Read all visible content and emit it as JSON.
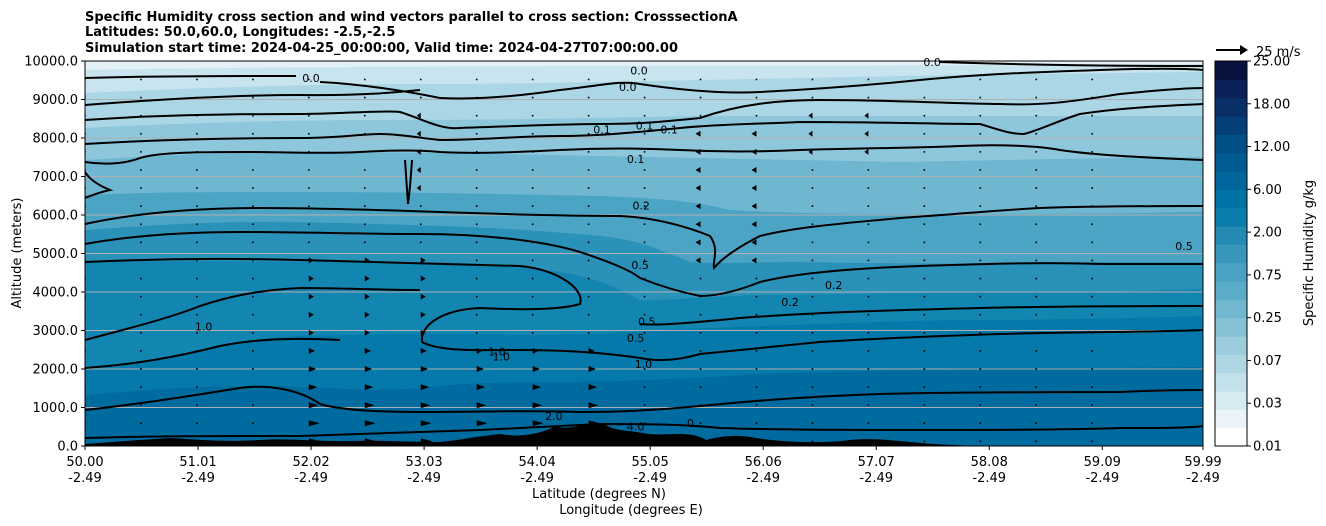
{
  "chart_data": {
    "type": "contourf",
    "title_lines": [
      "Specific Humidity cross section and wind vectors parallel to cross section: CrosssectionA",
      "Latitudes: 50.0,60.0, Longitudes: -2.5,-2.5",
      "Simulation start time: 2024-04-25_00:00:00, Valid time: 2024-04-27T07:00:00.00"
    ],
    "ylabel": "Altitude (meters)",
    "xlabel_lines": [
      "Latitude (degrees N)",
      "Longitude (degrees E)"
    ],
    "ylim": [
      0,
      10000
    ],
    "y_ticks": [
      "0.0",
      "1000.0",
      "2000.0",
      "3000.0",
      "4000.0",
      "5000.0",
      "6000.0",
      "7000.0",
      "8000.0",
      "9000.0",
      "10000.0"
    ],
    "y_tick_values": [
      0,
      1000,
      2000,
      3000,
      4000,
      5000,
      6000,
      7000,
      8000,
      9000,
      10000
    ],
    "x_ticks_lat": [
      "50.00",
      "51.01",
      "52.02",
      "53.03",
      "54.04",
      "55.05",
      "56.06",
      "57.07",
      "58.08",
      "59.09",
      "59.99"
    ],
    "x_ticks_lon": [
      "-2.49",
      "-2.49",
      "-2.49",
      "-2.49",
      "-2.49",
      "-2.49",
      "-2.49",
      "-2.49",
      "-2.49",
      "-2.49",
      "-2.49"
    ],
    "x_tick_values": [
      50.0,
      51.01,
      52.02,
      53.03,
      54.04,
      55.05,
      56.06,
      57.07,
      58.08,
      59.09,
      59.99
    ],
    "xlim": [
      50.0,
      59.99
    ],
    "horizontal_grid": true,
    "colorbar": {
      "label": "Specific Humidity g/kg",
      "tick_labels": [
        "0.01",
        "0.03",
        "0.07",
        "0.25",
        "0.75",
        "2.00",
        "6.00",
        "12.00",
        "18.00",
        "25.00"
      ],
      "colors": [
        "#ffffff",
        "#eaf4f8",
        "#d6ebf1",
        "#c2e1ea",
        "#afd7e3",
        "#9bcddd",
        "#86c2d6",
        "#71b7cf",
        "#5aacc8",
        "#4aa1c2",
        "#3996bb",
        "#258ab3",
        "#0b7eab",
        "#0072a4",
        "#00669c",
        "#005b91",
        "#004f85",
        "#043f77",
        "#082f67",
        "#0b2158",
        "#08123f"
      ]
    },
    "quiver_key": {
      "label": "25 m/s",
      "speed": 25
    },
    "contour_labels": [
      {
        "text": "0.0",
        "x": 52.02,
        "y": 9560
      },
      {
        "text": "0.0",
        "x": 54.95,
        "y": 9750
      },
      {
        "text": "0.0",
        "x": 54.85,
        "y": 9320
      },
      {
        "text": "0.0",
        "x": 57.57,
        "y": 9980
      },
      {
        "text": "0.1",
        "x": 54.62,
        "y": 8220
      },
      {
        "text": "0.1",
        "x": 55.0,
        "y": 8320
      },
      {
        "text": "0.1",
        "x": 55.22,
        "y": 8220
      },
      {
        "text": "0.1",
        "x": 54.92,
        "y": 7450
      },
      {
        "text": "0.2",
        "x": 54.97,
        "y": 6250
      },
      {
        "text": "0.5",
        "x": 54.96,
        "y": 4700
      },
      {
        "text": "0.2",
        "x": 56.3,
        "y": 3740
      },
      {
        "text": "0.2",
        "x": 56.69,
        "y": 4180
      },
      {
        "text": "0.5",
        "x": 59.82,
        "y": 5200
      },
      {
        "text": "1.0",
        "x": 51.06,
        "y": 3100
      },
      {
        "text": "1.0",
        "x": 53.72,
        "y": 2320
      },
      {
        "text": "1.0",
        "x": 53.68,
        "y": 2460
      },
      {
        "text": "0.5",
        "x": 55.02,
        "y": 3230
      },
      {
        "text": "0.5",
        "x": 54.92,
        "y": 2810
      },
      {
        "text": "1.0",
        "x": 54.99,
        "y": 2130
      },
      {
        "text": "2.0",
        "x": 54.19,
        "y": 780
      },
      {
        "text": "4.0",
        "x": 54.92,
        "y": 510
      },
      {
        "text": "0",
        "x": 55.41,
        "y": 600
      }
    ]
  }
}
